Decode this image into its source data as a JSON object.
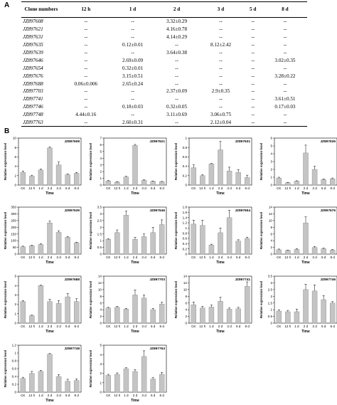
{
  "panel_a_label": "A",
  "panel_b_label": "B",
  "table": {
    "headers": [
      "Clone numbers",
      "12 h",
      "1 d",
      "2 d",
      "3 d",
      "5 d",
      "8 d"
    ],
    "rows": [
      [
        "JZ897608",
        "--",
        "--",
        "3.32±0.29",
        "--",
        "--",
        "--"
      ],
      [
        "JZ897621",
        "--",
        "--",
        "4.16±0.78",
        "--",
        "--",
        "--"
      ],
      [
        "JZ897631",
        "--",
        "--",
        "4.14±0.29",
        "--",
        "--",
        "--"
      ],
      [
        "JZ897635",
        "--",
        "0.12±0.01",
        "--",
        "8.12±2.42",
        "--",
        "--"
      ],
      [
        "JZ897639",
        "--",
        "--",
        "3.64±0.38",
        "--",
        "--",
        "--"
      ],
      [
        "JZ897646",
        "--",
        "2.69±0.09",
        "--",
        "--",
        "--",
        "3.02±0.35"
      ],
      [
        "JZ897654",
        "--",
        "0.32±0.01",
        "--",
        "--",
        "--",
        "--"
      ],
      [
        "JZ897676",
        "--",
        "3.15±0.51",
        "--",
        "--",
        "--",
        "3.28±0.22"
      ],
      [
        "JZ897688",
        "0.06±0.006",
        "2.65±0.24",
        "--",
        "--",
        "--",
        "--"
      ],
      [
        "JZ897703",
        "--",
        "--",
        "2.37±0.09",
        "2.9±0.35",
        "--",
        "--"
      ],
      [
        "JZ897741",
        "--",
        "--",
        "--",
        "--",
        "--",
        "3.61±0.51"
      ],
      [
        "JZ897746",
        "--",
        "0.18±0.03",
        "0.32±0.05",
        "--",
        "--",
        "0.17±0.03"
      ],
      [
        "JZ897748",
        "4.44±0.16",
        "--",
        "3.11±0.69",
        "3.06±0.75",
        "--",
        "--"
      ],
      [
        "JZ897763",
        "--",
        "2.60±0.31",
        "--",
        "2.12±0.04",
        "--",
        "--"
      ]
    ]
  },
  "chart_data": [
    {
      "type": "bar",
      "title": "JZ897608",
      "categories": [
        "CK",
        "12 h",
        "1 d",
        "2 d",
        "3 d",
        "5 d",
        "8 d"
      ],
      "values": [
        2.7,
        1.9,
        3.2,
        7.9,
        4.3,
        2.2,
        2.5
      ],
      "errors": [
        0.3,
        0.2,
        0.2,
        0.2,
        0.6,
        0.2,
        0.2
      ],
      "yticks": [
        "0",
        "2",
        "4",
        "6",
        "8",
        "10"
      ],
      "ylim": [
        0,
        10
      ],
      "xlabel": "Time",
      "ylabel": "Relative expression level"
    },
    {
      "type": "bar",
      "title": "JZ897621",
      "categories": [
        "CK",
        "12 h",
        "1 d",
        "2 d",
        "3 d",
        "5 d",
        "8 d"
      ],
      "values": [
        0.6,
        0.45,
        1.2,
        5.9,
        0.7,
        0.55,
        0.5
      ],
      "errors": [
        0.1,
        0.05,
        0.1,
        0.15,
        0.1,
        0.05,
        0.05
      ],
      "yticks": [
        "0",
        "1",
        "2",
        "3",
        "4",
        "5",
        "6",
        "7"
      ],
      "ylim": [
        0,
        7
      ],
      "xlabel": "Time",
      "ylabel": "Relative expression level"
    },
    {
      "type": "bar",
      "title": "JZ897631",
      "categories": [
        "CK",
        "12 h",
        "1 d",
        "2 d",
        "3 d",
        "5 d",
        "8 d"
      ],
      "values": [
        0.37,
        0.2,
        0.45,
        0.75,
        0.3,
        0.27,
        0.16
      ],
      "errors": [
        0.06,
        0.02,
        0.01,
        0.18,
        0.08,
        0.06,
        0.05
      ],
      "yticks": [
        "0",
        "0.2",
        "0.4",
        "0.6",
        "0.8",
        "1"
      ],
      "ylim": [
        0,
        1
      ],
      "xlabel": "Time",
      "ylabel": "Relative expression level"
    },
    {
      "type": "bar",
      "title": "JZ897635",
      "categories": [
        "CK",
        "12 h",
        "1 d",
        "2 d",
        "3 d",
        "5 d",
        "8 d"
      ],
      "values": [
        0.9,
        0.3,
        0.5,
        4.1,
        2.0,
        0.7,
        0.8
      ],
      "errors": [
        0.1,
        0.05,
        0.05,
        1.0,
        0.4,
        0.1,
        0.1
      ],
      "yticks": [
        "0",
        "1",
        "2",
        "3",
        "4",
        "5",
        "6"
      ],
      "ylim": [
        0,
        6
      ],
      "xlabel": "Time",
      "ylabel": "Relative expression level"
    },
    {
      "type": "bar",
      "title": "JZ897639",
      "categories": [
        "CK",
        "12 h",
        "1 d",
        "2 d",
        "3 d",
        "5 d",
        "8 d"
      ],
      "values": [
        55,
        62,
        72,
        232,
        162,
        125,
        85
      ],
      "errors": [
        4,
        5,
        5,
        14,
        12,
        6,
        4
      ],
      "yticks": [
        "0",
        "50",
        "100",
        "150",
        "200",
        "250",
        "300",
        "350"
      ],
      "ylim": [
        0,
        350
      ],
      "xlabel": "Time",
      "ylabel": "Relative expression level"
    },
    {
      "type": "bar",
      "title": "JZ897646",
      "categories": [
        "CK",
        "12 h",
        "1 d",
        "2 d",
        "3 d",
        "5 d",
        "8 d"
      ],
      "values": [
        1.1,
        1.6,
        2.9,
        1.1,
        1.3,
        1.6,
        2.2
      ],
      "errors": [
        0.05,
        0.2,
        0.3,
        0.15,
        0.2,
        0.4,
        0.35
      ],
      "yticks": [
        "0",
        "0.5",
        "1",
        "1.5",
        "2",
        "2.5",
        "3",
        "3.5"
      ],
      "ylim": [
        0,
        3.5
      ],
      "xlabel": "Time",
      "ylabel": "Relative expression level"
    },
    {
      "type": "bar",
      "title": "JZ897654",
      "categories": [
        "CK",
        "12 h",
        "1 d",
        "2 d",
        "3 d",
        "5 d",
        "8 d"
      ],
      "values": [
        1.15,
        1.1,
        0.35,
        0.82,
        1.4,
        0.5,
        0.6
      ],
      "errors": [
        0.15,
        0.2,
        0.03,
        0.18,
        0.28,
        0.05,
        0.05
      ],
      "yticks": [
        "0",
        "0.2",
        "0.4",
        "0.6",
        "0.8",
        "1",
        "1.2",
        "1.4",
        "1.6",
        "1.8"
      ],
      "ylim": [
        0,
        1.8
      ],
      "xlabel": "Time",
      "ylabel": "Relative expression level"
    },
    {
      "type": "bar",
      "title": "JZ897676",
      "categories": [
        "CK",
        "12 h",
        "1 d",
        "2 d",
        "3 d",
        "5 d",
        "8 d"
      ],
      "values": [
        1.3,
        1.1,
        1.4,
        9.3,
        2.0,
        1.6,
        1.2
      ],
      "errors": [
        0.2,
        0.1,
        0.2,
        1.8,
        0.3,
        0.2,
        0.2
      ],
      "yticks": [
        "0",
        "2",
        "4",
        "6",
        "8",
        "10",
        "12",
        "14"
      ],
      "ylim": [
        0,
        14
      ],
      "xlabel": "Time",
      "ylabel": "Relative expression level"
    },
    {
      "type": "bar",
      "title": "JZ897688",
      "categories": [
        "CK",
        "12 h",
        "1 d",
        "2 d",
        "3 d",
        "5 d",
        "8 d"
      ],
      "values": [
        2.3,
        0.8,
        4.0,
        2.3,
        2.1,
        2.8,
        2.3
      ],
      "errors": [
        0.1,
        0.05,
        0.05,
        0.25,
        0.3,
        0.35,
        0.3
      ],
      "yticks": [
        "0",
        "1",
        "2",
        "3",
        "4",
        "5"
      ],
      "ylim": [
        0,
        5
      ],
      "xlabel": "Time",
      "ylabel": "Relative expression level"
    },
    {
      "type": "bar",
      "title": "JZ897703",
      "categories": [
        "CK",
        "12 h",
        "1 d",
        "2 d",
        "3 d",
        "5 d",
        "8 d"
      ],
      "values": [
        4.5,
        4.7,
        4.2,
        8.4,
        7.5,
        4.0,
        5.7
      ],
      "errors": [
        0.2,
        0.3,
        0.2,
        1.5,
        0.9,
        0.4,
        0.5
      ],
      "yticks": [
        "0",
        "2",
        "4",
        "6",
        "8",
        "10",
        "12",
        "14"
      ],
      "ylim": [
        0,
        14
      ],
      "xlabel": "Time",
      "ylabel": "Relative expression level"
    },
    {
      "type": "bar",
      "title": "JZ897741",
      "categories": [
        "CK",
        "12 h",
        "1 d",
        "2 d",
        "3 d",
        "5 d",
        "8 d"
      ],
      "values": [
        5.5,
        4.5,
        4.8,
        6.5,
        4.2,
        4.3,
        11.0
      ],
      "errors": [
        0.8,
        0.5,
        0.6,
        1.2,
        0.3,
        0.4,
        1.3
      ],
      "yticks": [
        "0",
        "2",
        "4",
        "6",
        "8",
        "10",
        "12",
        "14"
      ],
      "ylim": [
        0,
        14
      ],
      "xlabel": "Time",
      "ylabel": "Relative expression level"
    },
    {
      "type": "bar",
      "title": "JZ897746",
      "categories": [
        "CK",
        "12 h",
        "1 d",
        "2 d",
        "3 d",
        "5 d",
        "8 d"
      ],
      "values": [
        0.9,
        0.85,
        0.85,
        2.5,
        2.4,
        1.75,
        1.5
      ],
      "errors": [
        0.1,
        0.1,
        0.2,
        0.4,
        0.45,
        0.3,
        0.1
      ],
      "yticks": [
        "0",
        "0.5",
        "1",
        "1.5",
        "2",
        "2.5",
        "3",
        "3.5"
      ],
      "ylim": [
        0,
        3.5
      ],
      "xlabel": "Time",
      "ylabel": "Relative expression level"
    },
    {
      "type": "bar",
      "title": "JZ897748",
      "categories": [
        "CK",
        "12 h",
        "1 d",
        "2 d",
        "3 d",
        "5 d",
        "8 d"
      ],
      "values": [
        0.35,
        0.48,
        0.53,
        0.97,
        0.4,
        0.28,
        0.3
      ],
      "errors": [
        0.03,
        0.05,
        0.03,
        0.02,
        0.05,
        0.05,
        0.04
      ],
      "yticks": [
        "0",
        "0.2",
        "0.4",
        "0.6",
        "0.8",
        "1",
        "1.2"
      ],
      "ylim": [
        0,
        1.2
      ],
      "xlabel": "Time",
      "ylabel": "Relative expression level"
    },
    {
      "type": "bar",
      "title": "JZ897763",
      "categories": [
        "CK",
        "12 h",
        "1 d",
        "2 d",
        "3 d",
        "5 d",
        "8 d"
      ],
      "values": [
        1.8,
        1.9,
        2.5,
        2.2,
        3.8,
        1.4,
        1.9
      ],
      "errors": [
        0.1,
        0.15,
        0.1,
        0.2,
        0.6,
        0.15,
        0.2
      ],
      "yticks": [
        "0",
        "1",
        "2",
        "3",
        "4",
        "5"
      ],
      "ylim": [
        0,
        5
      ],
      "xlabel": "Time",
      "ylabel": "Relative expression level"
    }
  ]
}
